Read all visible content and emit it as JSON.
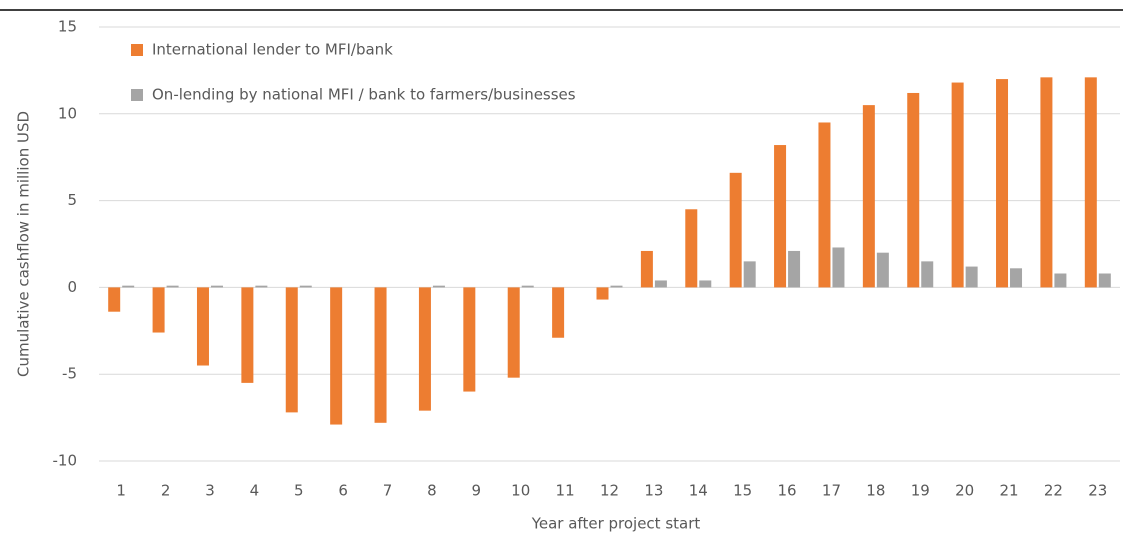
{
  "chart_data": {
    "type": "bar",
    "y_label": "Cumulative cashflow in million USD",
    "x_label": "Year after project start",
    "categories": [
      "1",
      "2",
      "3",
      "4",
      "5",
      "6",
      "7",
      "8",
      "9",
      "10",
      "11",
      "12",
      "13",
      "14",
      "15",
      "16",
      "17",
      "18",
      "19",
      "20",
      "21",
      "22",
      "23"
    ],
    "series": [
      {
        "name": "International lender to MFI/bank",
        "color": "#ed7d31",
        "values": [
          -1.4,
          -2.6,
          -4.5,
          -5.5,
          -7.2,
          -7.9,
          -7.8,
          -7.1,
          -6.0,
          -5.2,
          -2.9,
          -0.7,
          2.1,
          4.5,
          6.6,
          8.2,
          9.5,
          10.5,
          11.2,
          11.8,
          12.0,
          12.1,
          12.1
        ]
      },
      {
        "name": "On-lending by national MFI / bank to farmers/businesses",
        "color": "#a5a5a5",
        "values": [
          0.1,
          0.1,
          0.1,
          0.1,
          0.1,
          0,
          0,
          0.1,
          0,
          0.1,
          0,
          0.1,
          0.4,
          0.4,
          1.5,
          2.1,
          2.3,
          2.0,
          1.5,
          1.2,
          1.1,
          0.8,
          0.8
        ]
      }
    ],
    "ylim": [
      -10,
      15
    ],
    "yticks": [
      -10,
      -5,
      0,
      5,
      10,
      15
    ],
    "grid": true
  }
}
